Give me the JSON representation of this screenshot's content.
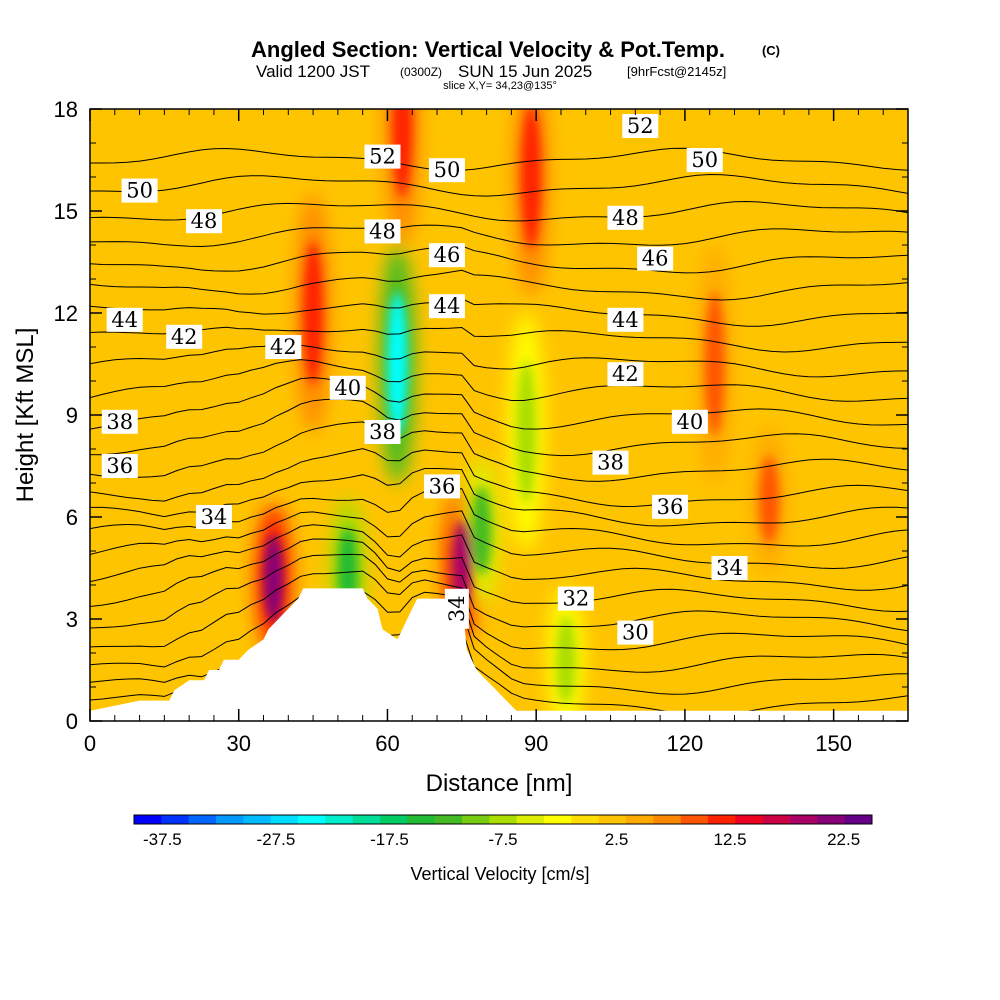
{
  "header": {
    "title_main": "Angled Section: Vertical Velocity & Pot.Temp.",
    "title_unit": "(C)",
    "valid_prefix": "Valid 1200 JST",
    "valid_zulu": "(0300Z)",
    "valid_date": "SUN 15 Jun 2025",
    "forecast": "[9hrFcst@2145z]",
    "slice": "slice X,Y= 34,23@135°"
  },
  "chart_data": {
    "type": "heatmap",
    "title": "Angled Section: Vertical Velocity & Pot.Temp. (C)",
    "xlabel": "Distance [nm]",
    "ylabel": "Height [Kft MSL]",
    "xlim": [
      0,
      165
    ],
    "ylim": [
      0,
      18
    ],
    "xticks": [
      "0",
      "30",
      "60",
      "90",
      "120",
      "150"
    ],
    "yticks": [
      "0",
      "3",
      "6",
      "9",
      "12",
      "15",
      "18"
    ],
    "colorbar": {
      "label": "Vertical Velocity [cm/s]",
      "tick_labels": [
        "-37.5",
        "-27.5",
        "-17.5",
        "-7.5",
        "2.5",
        "12.5",
        "22.5"
      ],
      "tick_values": [
        -37.5,
        -27.5,
        -17.5,
        -7.5,
        2.5,
        12.5,
        22.5
      ],
      "range": [
        -40,
        25
      ],
      "colors": [
        "#0000ff",
        "#0033ff",
        "#0066ff",
        "#0099ff",
        "#00bbff",
        "#00ddff",
        "#00ffff",
        "#00eecc",
        "#00dd99",
        "#00cc66",
        "#22bb33",
        "#44bb22",
        "#77cc11",
        "#aadd00",
        "#ddee00",
        "#ffff00",
        "#ffdd00",
        "#ffc400",
        "#ffaa00",
        "#ff8800",
        "#ff5500",
        "#ff2200",
        "#ee0022",
        "#cc0044",
        "#aa0066",
        "#880077",
        "#660088"
      ]
    },
    "theta_contours": [
      {
        "label": "30",
        "x": 110,
        "y": 2.6
      },
      {
        "label": "32",
        "x": 98,
        "y": 3.6
      },
      {
        "label": "34",
        "x": 25,
        "y": 6.0
      },
      {
        "label": "34",
        "x": 74,
        "y": 3.3
      },
      {
        "label": "34",
        "x": 129,
        "y": 4.5
      },
      {
        "label": "36",
        "x": 6,
        "y": 7.5
      },
      {
        "label": "36",
        "x": 71,
        "y": 6.9
      },
      {
        "label": "36",
        "x": 117,
        "y": 6.3
      },
      {
        "label": "38",
        "x": 6,
        "y": 8.8
      },
      {
        "label": "38",
        "x": 59,
        "y": 8.5
      },
      {
        "label": "38",
        "x": 105,
        "y": 7.6
      },
      {
        "label": "40",
        "x": 52,
        "y": 9.8
      },
      {
        "label": "40",
        "x": 121,
        "y": 8.8
      },
      {
        "label": "42",
        "x": 19,
        "y": 11.3
      },
      {
        "label": "42",
        "x": 39,
        "y": 11.0
      },
      {
        "label": "42",
        "x": 108,
        "y": 10.2
      },
      {
        "label": "44",
        "x": 7,
        "y": 11.8
      },
      {
        "label": "44",
        "x": 72,
        "y": 12.2
      },
      {
        "label": "44",
        "x": 108,
        "y": 11.8
      },
      {
        "label": "46",
        "x": 72,
        "y": 13.7
      },
      {
        "label": "46",
        "x": 114,
        "y": 13.6
      },
      {
        "label": "48",
        "x": 23,
        "y": 14.7
      },
      {
        "label": "48",
        "x": 59,
        "y": 14.4
      },
      {
        "label": "48",
        "x": 108,
        "y": 14.8
      },
      {
        "label": "50",
        "x": 10,
        "y": 15.6
      },
      {
        "label": "50",
        "x": 72,
        "y": 16.2
      },
      {
        "label": "50",
        "x": 124,
        "y": 16.5
      },
      {
        "label": "52",
        "x": 59,
        "y": 16.6
      },
      {
        "label": "52",
        "x": 111,
        "y": 17.5
      }
    ],
    "velocity_features": [
      {
        "kind": "updraft",
        "x": 37,
        "y": 4.2,
        "value": 22.5
      },
      {
        "kind": "updraft",
        "x": 75,
        "y": 4.6,
        "value": 20
      },
      {
        "kind": "updraft",
        "x": 89,
        "y": 16.0,
        "value": 12.5
      },
      {
        "kind": "updraft",
        "x": 63,
        "y": 17.5,
        "value": 12.5
      },
      {
        "kind": "updraft",
        "x": 45,
        "y": 12.0,
        "value": 12.5
      },
      {
        "kind": "updraft",
        "x": 126,
        "y": 10.5,
        "value": 10
      },
      {
        "kind": "updraft",
        "x": 137,
        "y": 6.5,
        "value": 10
      },
      {
        "kind": "downdraft",
        "x": 62,
        "y": 10.5,
        "value": -25
      },
      {
        "kind": "downdraft",
        "x": 52,
        "y": 4.4,
        "value": -15
      },
      {
        "kind": "downdraft",
        "x": 79,
        "y": 5.6,
        "value": -12
      },
      {
        "kind": "downdraft",
        "x": 88,
        "y": 8.5,
        "value": -7.5
      },
      {
        "kind": "downdraft",
        "x": 96,
        "y": 1.8,
        "value": -7.5
      }
    ],
    "terrain": [
      [
        0,
        0.3
      ],
      [
        10,
        0.6
      ],
      [
        16,
        0.6
      ],
      [
        17,
        0.9
      ],
      [
        20,
        1.2
      ],
      [
        23,
        1.2
      ],
      [
        24,
        1.5
      ],
      [
        26,
        1.5
      ],
      [
        27,
        1.8
      ],
      [
        30,
        1.8
      ],
      [
        32,
        2.1
      ],
      [
        35,
        2.4
      ],
      [
        36,
        2.7
      ],
      [
        38,
        3.0
      ],
      [
        40,
        3.3
      ],
      [
        42,
        3.6
      ],
      [
        43,
        3.9
      ],
      [
        55,
        3.9
      ],
      [
        56,
        3.6
      ],
      [
        58,
        3.3
      ],
      [
        59,
        2.7
      ],
      [
        62,
        2.4
      ],
      [
        63,
        2.7
      ],
      [
        65,
        3.3
      ],
      [
        66,
        3.6
      ],
      [
        75,
        3.6
      ],
      [
        76,
        2.1
      ],
      [
        78,
        1.5
      ],
      [
        80,
        1.2
      ],
      [
        82,
        0.9
      ],
      [
        84,
        0.6
      ],
      [
        86,
        0.3
      ],
      [
        165,
        0.3
      ]
    ]
  }
}
